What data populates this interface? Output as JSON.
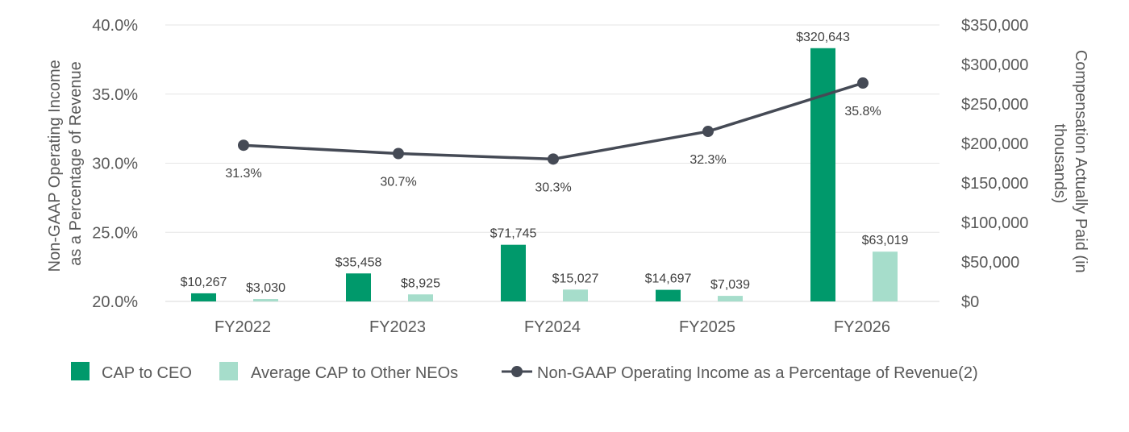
{
  "chart_data": {
    "type": "bar",
    "categories": [
      "FY2022",
      "FY2023",
      "FY2024",
      "FY2025",
      "FY2026"
    ],
    "series": [
      {
        "name": "CAP to CEO",
        "kind": "bar",
        "axis": "right",
        "color": "#00996b",
        "values": [
          10267,
          35458,
          71745,
          14697,
          320643
        ],
        "labels": [
          "$10,267",
          "$35,458",
          "$71,745",
          "$14,697",
          "$320,643"
        ]
      },
      {
        "name": "Average CAP to Other NEOs",
        "kind": "bar",
        "axis": "right",
        "color": "#a6ddcb",
        "values": [
          3030,
          8925,
          15027,
          7039,
          63019
        ],
        "labels": [
          "$3,030",
          "$8,925",
          "$15,027",
          "$7,039",
          "$63,019"
        ]
      },
      {
        "name": "Non-GAAP Operating Income as a Percentage of Revenue(2)",
        "kind": "line",
        "axis": "left",
        "color": "#454a55",
        "values": [
          31.3,
          30.7,
          30.3,
          32.3,
          35.8
        ],
        "labels": [
          "31.3%",
          "30.7%",
          "30.3%",
          "32.3%",
          "35.8%"
        ]
      }
    ],
    "y_left": {
      "label": "Non-GAAP Operating Income as a Percentage of Revenue",
      "label_lines": [
        "Non-GAAP Operating Income",
        "as a Percentage of Revenue"
      ],
      "range": [
        20,
        40
      ],
      "ticks": [
        20,
        25,
        30,
        35,
        40
      ],
      "tick_labels": [
        "20.0%",
        "25.0%",
        "30.0%",
        "35.0%",
        "40.0%"
      ]
    },
    "y_right": {
      "label": "Compensation Actually Paid (in thousands)",
      "label_lines": [
        "Compensation Actually Paid (in",
        "thousands)"
      ],
      "range": [
        0,
        350000
      ],
      "ticks": [
        0,
        50000,
        100000,
        150000,
        200000,
        250000,
        300000,
        350000
      ],
      "tick_labels": [
        "$0",
        "$50,000",
        "$100,000",
        "$150,000",
        "$200,000",
        "$250,000",
        "$300,000",
        "$350,000"
      ]
    },
    "grid": true,
    "grid_color": "#e6e6e6",
    "legend_position": "bottom"
  }
}
